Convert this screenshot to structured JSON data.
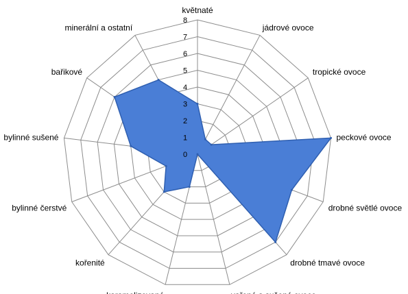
{
  "chart_data": {
    "type": "radar",
    "categories": [
      "květnaté",
      "jádrové ovoce",
      "tropické ovoce",
      "peckové ovoce",
      "drobné světlé ovoce",
      "drobné tmavé ovoce",
      "vařené a sušené ovoce",
      "karamelizované",
      "kořenité",
      "bylinné čerstvé",
      "bylinné sušené",
      "bařikové",
      "minerální a ostatní"
    ],
    "series": [
      {
        "values": [
          3,
          1,
          1,
          8,
          6,
          7,
          0,
          2,
          3,
          2,
          4,
          6,
          5
        ]
      }
    ],
    "rlim": [
      0,
      8
    ],
    "ticks": [
      "0",
      "1",
      "2",
      "3",
      "4",
      "5",
      "6",
      "7",
      "8"
    ],
    "grid": true,
    "legend": "none",
    "colors": {
      "fill": "#4a7ed6",
      "stroke": "#2f5fb0",
      "grid": "#8c8c8c"
    }
  }
}
